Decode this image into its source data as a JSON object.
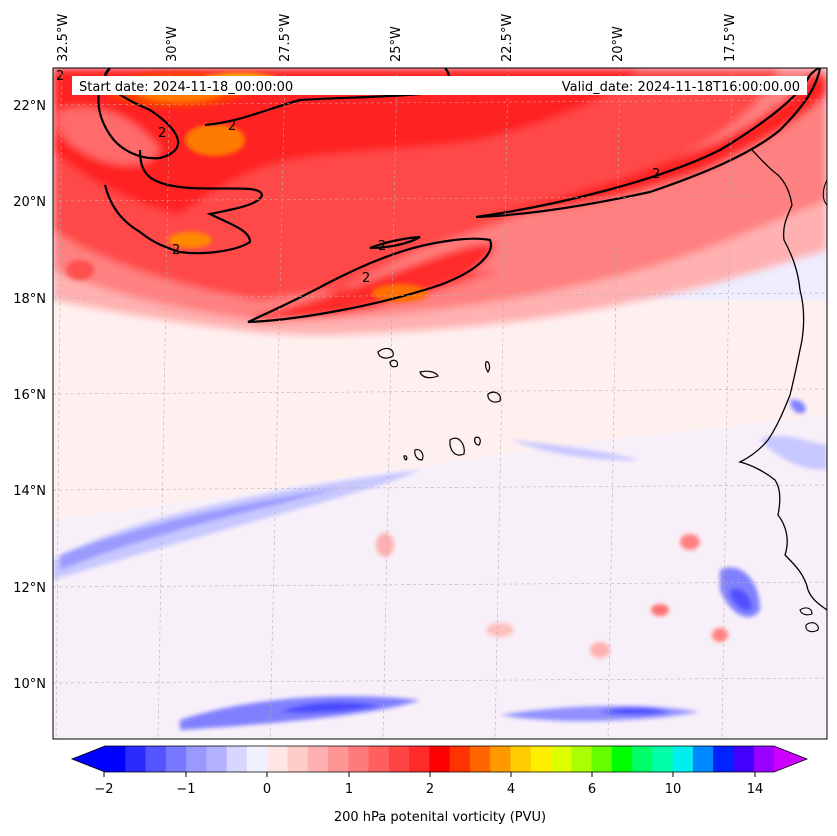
{
  "map": {
    "header": {
      "start_date": "Start date: 2024-11-18_00:00:00",
      "valid_date": "Valid_date: 2024-11-18T16:00:00.00"
    },
    "lon_labels": [
      "32.5°W",
      "30°W",
      "27.5°W",
      "25°W",
      "22.5°W",
      "20°W",
      "17.5°W"
    ],
    "lat_labels": [
      "22°N",
      "20°N",
      "18°N",
      "16°N",
      "14°N",
      "12°N",
      "10°N"
    ],
    "contour_level_labels": [
      "2",
      "2",
      "2",
      "2",
      "2",
      "2",
      "2"
    ],
    "field_colors": {
      "pv_2_plus": "#ff1a1a",
      "pv_1_5": "#ff6060",
      "pv_1": "#ff9a9a",
      "pv_0_5": "#ffd0d0",
      "pv_0_2": "#ffeeee",
      "pv_neg_small": "#eeeeff",
      "pv_neg": "#c8c8ff",
      "pv_neg_strong": "#6060ff",
      "pv_3": "#ff8800",
      "contour": "#000000",
      "coast": "#000000"
    }
  },
  "colorbar": {
    "label": "200 hPa potenital vorticity (PVU)",
    "tick_labels": [
      "−2",
      "−1",
      "0",
      "1",
      "2",
      "4",
      "6",
      "10",
      "14"
    ],
    "colors": [
      "#0000ff",
      "#2b2bff",
      "#5555ff",
      "#7777ff",
      "#9999ff",
      "#b2b2ff",
      "#d6d6ff",
      "#f0f0ff",
      "#ffe6e6",
      "#ffcccc",
      "#ffb0b0",
      "#ff9595",
      "#ff7a7a",
      "#ff5f5f",
      "#ff4444",
      "#ff2a2a",
      "#ff0000",
      "#ff3300",
      "#ff6600",
      "#ff9900",
      "#ffcc00",
      "#ffee00",
      "#ddff00",
      "#aaff00",
      "#66ff00",
      "#00ff00",
      "#00ff66",
      "#00ffaa",
      "#00eeee",
      "#0088ff",
      "#0022ff",
      "#4400ff",
      "#9900ff"
    ],
    "under_color": "#0000ff",
    "over_color": "#cc00ff"
  }
}
